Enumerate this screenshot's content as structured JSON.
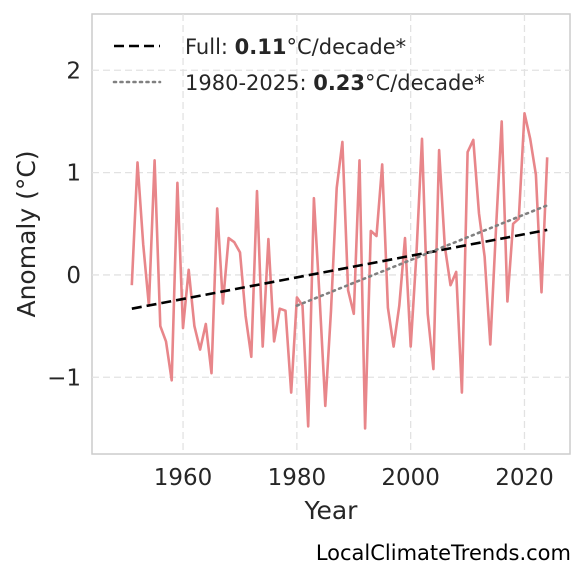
{
  "chart_data": {
    "type": "line",
    "xlabel": "Year",
    "ylabel": "Anomaly (°C)",
    "xlim": [
      1944,
      2028
    ],
    "ylim": [
      -1.75,
      2.55
    ],
    "x_ticks": [
      1960,
      1980,
      2000,
      2020
    ],
    "x_tick_labels": [
      "1960",
      "1980",
      "2000",
      "2020"
    ],
    "y_ticks": [
      2,
      1,
      0,
      -1
    ],
    "y_tick_labels": [
      "2",
      "1",
      "0",
      "−1"
    ],
    "grid": true,
    "legend_position": "top-left",
    "series": [
      {
        "name": "",
        "color": "#e8868a",
        "x": [
          1951,
          1952,
          1953,
          1954,
          1955,
          1956,
          1957,
          1958,
          1959,
          1960,
          1961,
          1962,
          1963,
          1964,
          1965,
          1966,
          1967,
          1968,
          1969,
          1970,
          1971,
          1972,
          1973,
          1974,
          1975,
          1976,
          1977,
          1978,
          1979,
          1980,
          1981,
          1982,
          1983,
          1984,
          1985,
          1986,
          1987,
          1988,
          1989,
          1990,
          1991,
          1992,
          1993,
          1994,
          1995,
          1996,
          1997,
          1998,
          1999,
          2000,
          2001,
          2002,
          2003,
          2004,
          2005,
          2006,
          2007,
          2008,
          2009,
          2010,
          2011,
          2012,
          2013,
          2014,
          2015,
          2016,
          2017,
          2018,
          2019,
          2020,
          2021,
          2022,
          2023,
          2024
        ],
        "y": [
          -0.1,
          1.1,
          0.3,
          -0.3,
          1.12,
          -0.5,
          -0.65,
          -1.03,
          0.9,
          -0.52,
          0.05,
          -0.5,
          -0.73,
          -0.48,
          -0.96,
          0.65,
          -0.28,
          0.36,
          0.32,
          0.22,
          -0.4,
          -0.8,
          0.82,
          -0.7,
          0.35,
          -0.65,
          -0.33,
          -0.35,
          -1.15,
          -0.22,
          -0.3,
          -1.48,
          0.75,
          -0.22,
          -1.28,
          -0.35,
          0.85,
          1.3,
          -0.15,
          -0.38,
          1.12,
          -1.5,
          0.43,
          0.38,
          1.08,
          -0.32,
          -0.7,
          -0.3,
          0.36,
          -0.7,
          0.2,
          1.33,
          -0.38,
          -0.92,
          1.22,
          0.28,
          -0.1,
          0.03,
          -1.15,
          1.2,
          1.32,
          0.6,
          0.18,
          -0.68,
          0.45,
          1.5,
          -0.26,
          0.5,
          0.55,
          1.58,
          1.33,
          0.98,
          -0.17,
          1.15
        ]
      }
    ],
    "trend_lines": [
      {
        "label_prefix": "Full: ",
        "label_value": "0.11",
        "label_suffix": "°C/decade*",
        "color": "#000000",
        "style": "dashed",
        "x": [
          1951,
          2024
        ],
        "y": [
          -0.33,
          0.44
        ]
      },
      {
        "label_prefix": "1980-2025: ",
        "label_value": "0.23",
        "label_suffix": "°C/decade*",
        "color": "#808080",
        "style": "dotted",
        "x": [
          1980,
          2024
        ],
        "y": [
          -0.3,
          0.68
        ]
      }
    ],
    "annotation": "LocalClimateTrends.com"
  }
}
